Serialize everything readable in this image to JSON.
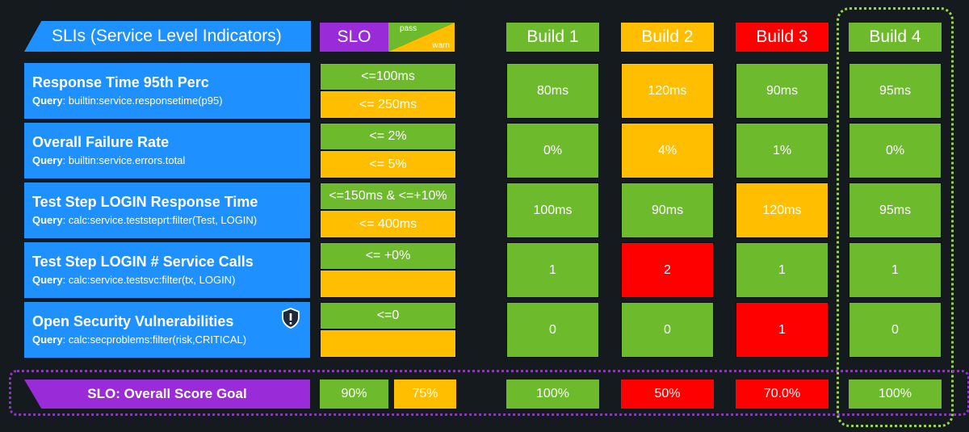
{
  "header": {
    "sli_title": "SLIs (Service Level Indicators)",
    "slo_label": "SLO",
    "pass_label": "pass",
    "warn_label": "warn",
    "builds": [
      "Build 1",
      "Build 2",
      "Build 3",
      "Build 4"
    ]
  },
  "rows": [
    {
      "title": "Response Time 95th Perc",
      "query_label": "Query",
      "query": ": builtin:service.responsetime(p95)",
      "pass": "<=100ms",
      "warn": "<= 250ms",
      "values": [
        "80ms",
        "120ms",
        "90ms",
        "95ms"
      ],
      "statuses": [
        "pass",
        "warn",
        "pass",
        "pass"
      ]
    },
    {
      "title": "Overall Failure Rate",
      "query_label": "Query",
      "query": ": builtin:service.errors.total",
      "pass": "<= 2%",
      "warn": "<= 5%",
      "values": [
        "0%",
        "4%",
        "1%",
        "0%"
      ],
      "statuses": [
        "pass",
        "warn",
        "pass",
        "pass"
      ]
    },
    {
      "title": "Test Step LOGIN Response Time",
      "query_label": "Query",
      "query": ": calc:service.teststeprt:filter(Test, LOGIN)",
      "pass": "<=150ms & <=+10%",
      "warn": "<= 400ms",
      "values": [
        "100ms",
        "90ms",
        "120ms",
        "95ms"
      ],
      "statuses": [
        "pass",
        "pass",
        "warn",
        "pass"
      ]
    },
    {
      "title": "Test Step LOGIN # Service Calls",
      "query_label": "Query",
      "query": ": calc:service.testsvc:filter(tx, LOGIN)",
      "pass": "<= +0%",
      "warn": "",
      "values": [
        "1",
        "2",
        "1",
        "1"
      ],
      "statuses": [
        "pass",
        "fail",
        "pass",
        "pass"
      ]
    },
    {
      "title": "Open Security Vulnerabilities",
      "query_label": "Query",
      "query": ": calc:secproblems:filter(risk,CRITICAL)",
      "pass": "<=0",
      "warn": "",
      "values": [
        "0",
        "0",
        "1",
        "0"
      ],
      "statuses": [
        "pass",
        "pass",
        "fail",
        "pass"
      ]
    }
  ],
  "overall": {
    "label": "SLO: Overall Score Goal",
    "pass_goal": "90%",
    "warn_goal": "75%",
    "scores": [
      "100%",
      "50%",
      "70.0%",
      "100%"
    ],
    "statuses": [
      "pass",
      "fail",
      "fail",
      "pass"
    ]
  },
  "icons": {
    "security": "shield-alert-icon"
  },
  "colors": {
    "pass": "#6dbb2d",
    "warn": "#ffbf00",
    "fail": "#ff0000",
    "sli": "#1e90ff",
    "slo": "#9a2bd8",
    "background": "#151a1e"
  }
}
